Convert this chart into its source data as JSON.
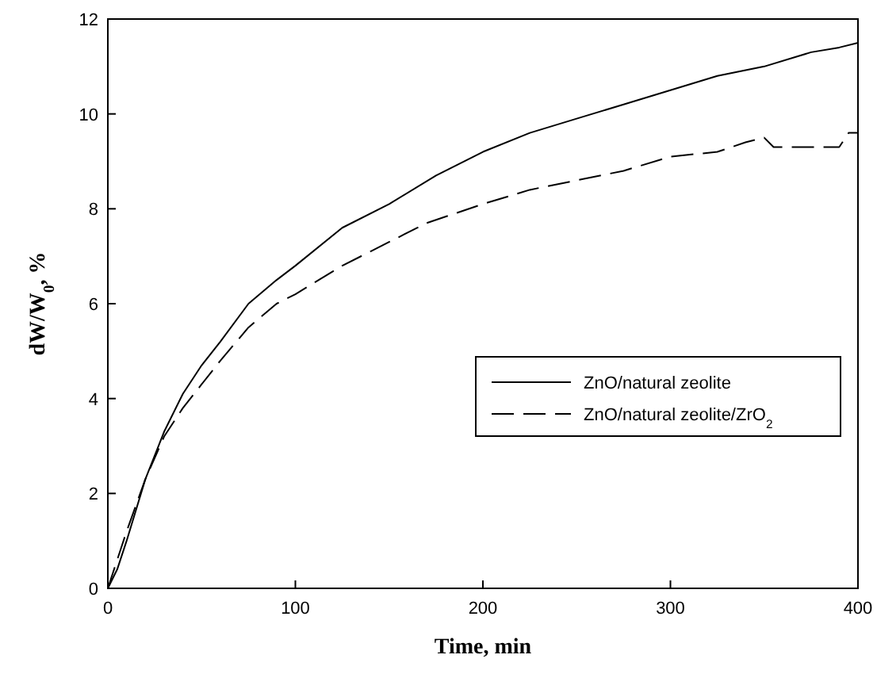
{
  "chart_data": {
    "type": "line",
    "xlabel": "Time, min",
    "ylabel": "dW/W$_{0}$, %",
    "xlim": [
      0,
      400
    ],
    "ylim": [
      0,
      12
    ],
    "xticks": [
      0,
      100,
      200,
      300,
      400
    ],
    "yticks": [
      0,
      2,
      4,
      6,
      8,
      10,
      12
    ],
    "grid": false,
    "legend": "right",
    "series": [
      {
        "name": "ZnO/natural zeolite",
        "color": "#000000",
        "line_style": "solid",
        "x": [
          0,
          5,
          10,
          20,
          30,
          40,
          50,
          60,
          75,
          90,
          100,
          125,
          150,
          175,
          200,
          225,
          250,
          275,
          300,
          325,
          350,
          375,
          390,
          400
        ],
        "values": [
          0,
          0.4,
          1,
          2.3,
          3.3,
          4.1,
          4.7,
          5.2,
          6,
          6.5,
          6.8,
          7.6,
          8.1,
          8.7,
          9.2,
          9.6,
          9.9,
          10.2,
          10.5,
          10.8,
          11,
          11.3,
          11.4,
          11.5
        ]
      },
      {
        "name": "ZnO/natural zeolite/ZrO$_{2}$",
        "color": "#000000",
        "line_style": "dashed",
        "x": [
          0,
          5,
          10,
          20,
          30,
          40,
          50,
          60,
          75,
          90,
          100,
          125,
          150,
          170,
          200,
          225,
          250,
          275,
          300,
          325,
          340,
          350,
          355,
          375,
          390,
          395,
          400
        ],
        "values": [
          0,
          0.6,
          1.2,
          2.3,
          3.2,
          3.8,
          4.3,
          4.8,
          5.5,
          6,
          6.2,
          6.8,
          7.3,
          7.7,
          8.1,
          8.4,
          8.6,
          8.8,
          9.1,
          9.2,
          9.4,
          9.5,
          9.3,
          9.3,
          9.3,
          9.6,
          9.6
        ]
      }
    ]
  }
}
